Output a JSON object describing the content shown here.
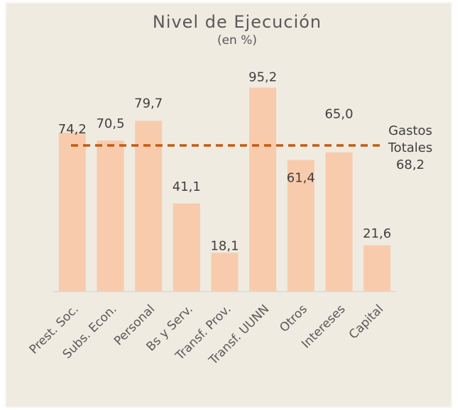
{
  "chart_data": {
    "type": "bar",
    "title": "Nivel de Ejecución",
    "subtitle": "(en %)",
    "categories": [
      "Prest. Soc.",
      "Subs. Econ.",
      "Personal",
      "Bs y Serv.",
      "Transf. Prov.",
      "Transf. UUNN",
      "Otros",
      "Intereses",
      "Capital"
    ],
    "values": [
      74.2,
      70.5,
      79.7,
      41.1,
      18.1,
      95.2,
      61.4,
      65.0,
      21.6
    ],
    "value_labels": [
      "74,2",
      "70,5",
      "79,7",
      "41,1",
      "18,1",
      "95,2",
      "61,4",
      "65,0",
      "21,6"
    ],
    "color": "#f8cbad",
    "ylim": [
      0,
      100
    ],
    "reference_line": {
      "label": [
        "Gastos",
        "Totales"
      ],
      "value": 68.2,
      "value_label": "68,2",
      "color": "#c55a11"
    }
  }
}
